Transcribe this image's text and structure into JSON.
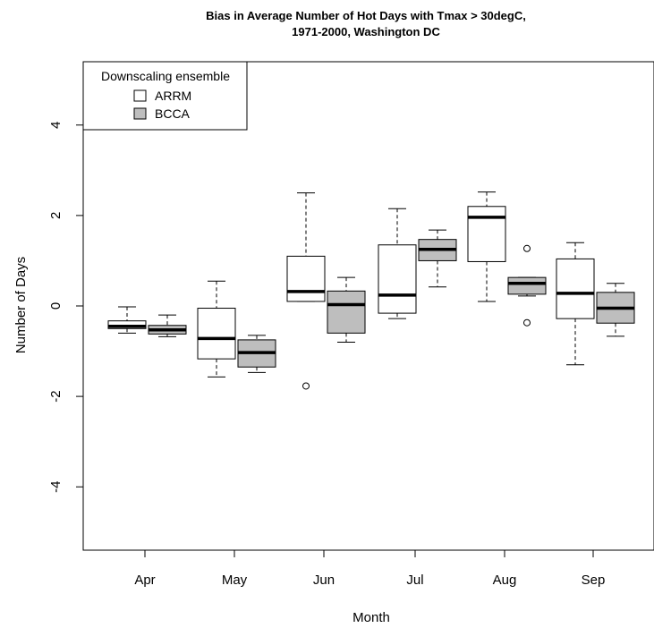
{
  "chart_data": {
    "type": "boxplot",
    "title": "Bias in Average Number of Hot Days with Tmax > 30degC,",
    "subtitle": "1971-2000, Washington DC",
    "xlabel": "Month",
    "ylabel": "Number of Days",
    "ylim": [
      -5.4,
      5.4
    ],
    "yticks": [
      -4,
      -2,
      0,
      2,
      4
    ],
    "yticklabels": [
      "-4",
      "-2",
      "0",
      "2",
      "4"
    ],
    "categories": [
      "Apr",
      "May",
      "Jun",
      "Jul",
      "Aug",
      "Sep"
    ],
    "grid": false,
    "legend": {
      "title": "Downscaling ensemble",
      "position": "top-left",
      "entries": [
        {
          "name": "ARRM",
          "color": "#ffffff"
        },
        {
          "name": "BCCA",
          "color": "#bebebe"
        }
      ]
    },
    "series": [
      {
        "name": "ARRM",
        "color": "#ffffff",
        "boxes": [
          {
            "whislo": -0.6,
            "q1": -0.5,
            "med": -0.45,
            "q3": -0.33,
            "whishi": -0.02,
            "outliers": []
          },
          {
            "whislo": -1.57,
            "q1": -1.17,
            "med": -0.72,
            "q3": -0.05,
            "whishi": 0.55,
            "outliers": []
          },
          {
            "whislo": 0.1,
            "q1": 0.1,
            "med": 0.32,
            "q3": 1.1,
            "whishi": 2.5,
            "outliers": [
              -1.77
            ]
          },
          {
            "whislo": -0.28,
            "q1": -0.16,
            "med": 0.24,
            "q3": 1.35,
            "whishi": 2.15,
            "outliers": []
          },
          {
            "whislo": 0.1,
            "q1": 0.98,
            "med": 1.96,
            "q3": 2.2,
            "whishi": 2.52,
            "outliers": []
          },
          {
            "whislo": -1.3,
            "q1": -0.28,
            "med": 0.28,
            "q3": 1.04,
            "whishi": 1.4,
            "outliers": []
          }
        ]
      },
      {
        "name": "BCCA",
        "color": "#bebebe",
        "boxes": [
          {
            "whislo": -0.68,
            "q1": -0.62,
            "med": -0.53,
            "q3": -0.43,
            "whishi": -0.2,
            "outliers": []
          },
          {
            "whislo": -1.47,
            "q1": -1.35,
            "med": -1.03,
            "q3": -0.75,
            "whishi": -0.65,
            "outliers": []
          },
          {
            "whislo": -0.8,
            "q1": -0.6,
            "med": 0.03,
            "q3": 0.33,
            "whishi": 0.63,
            "outliers": []
          },
          {
            "whislo": 0.42,
            "q1": 1.0,
            "med": 1.25,
            "q3": 1.47,
            "whishi": 1.68,
            "outliers": []
          },
          {
            "whislo": 0.22,
            "q1": 0.26,
            "med": 0.5,
            "q3": 0.63,
            "whishi": 0.63,
            "outliers": [
              1.27,
              -0.37
            ]
          },
          {
            "whislo": -0.67,
            "q1": -0.38,
            "med": -0.05,
            "q3": 0.3,
            "whishi": 0.5,
            "outliers": []
          }
        ]
      }
    ]
  }
}
